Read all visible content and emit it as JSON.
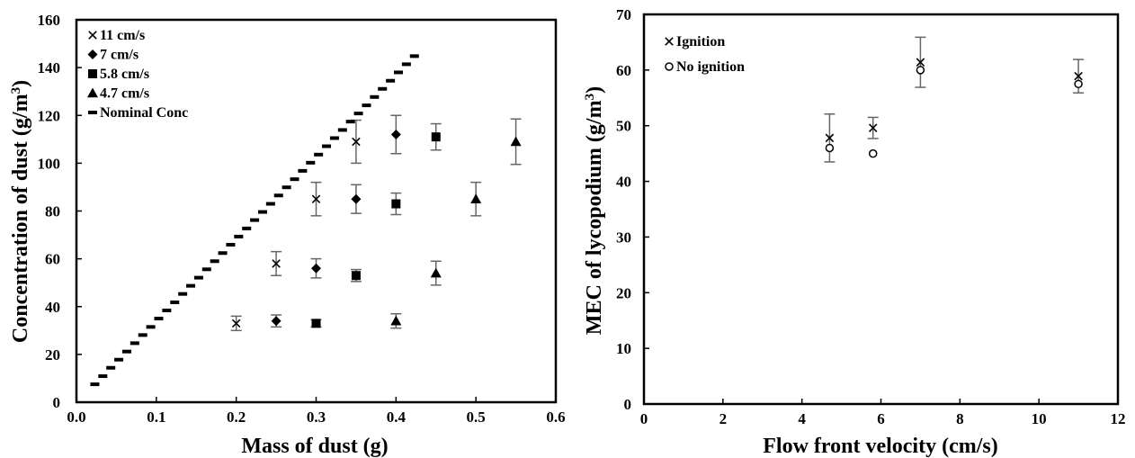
{
  "chart_data": [
    {
      "type": "scatter",
      "xlabel": "Mass of dust (g)",
      "ylabel": "Concentration of dust (g/m",
      "ylabel_sup": "3",
      "ylabel_close": ")",
      "xlim": [
        0.0,
        0.6
      ],
      "ylim": [
        0,
        160
      ],
      "x_ticks": [
        "0.0",
        "0.1",
        "0.2",
        "0.3",
        "0.4",
        "0.5",
        "0.6"
      ],
      "x_tick_values": [
        0.0,
        0.1,
        0.2,
        0.3,
        0.4,
        0.5,
        0.6
      ],
      "y_ticks": [
        "0",
        "20",
        "40",
        "60",
        "80",
        "100",
        "120",
        "140",
        "160"
      ],
      "y_tick_values": [
        0,
        20,
        40,
        60,
        80,
        100,
        120,
        140,
        160
      ],
      "grid": false,
      "legend_position": "top-left",
      "series": [
        {
          "name": "11 cm/s",
          "marker": "x",
          "x": [
            0.2,
            0.25,
            0.3,
            0.35
          ],
          "y": [
            33,
            58,
            85,
            109
          ],
          "err": [
            3,
            5,
            7,
            9
          ]
        },
        {
          "name": "7 cm/s",
          "marker": "diamond",
          "x": [
            0.25,
            0.3,
            0.35,
            0.4
          ],
          "y": [
            34,
            56,
            85,
            112
          ],
          "err": [
            2.5,
            4,
            6,
            8
          ]
        },
        {
          "name": "5.8 cm/s",
          "marker": "square",
          "x": [
            0.3,
            0.35,
            0.4,
            0.45
          ],
          "y": [
            33,
            53,
            83,
            111
          ],
          "err": [
            1.5,
            2.5,
            4.5,
            5.5
          ]
        },
        {
          "name": "4.7 cm/s",
          "marker": "triangle",
          "x": [
            0.4,
            0.45,
            0.5,
            0.55
          ],
          "y": [
            34,
            54,
            85,
            109
          ],
          "err": [
            3,
            5,
            7,
            9.5
          ]
        },
        {
          "name": "Nominal Conc",
          "marker": "dash",
          "x": [
            0.023,
            0.033,
            0.043,
            0.053,
            0.063,
            0.073,
            0.083,
            0.093,
            0.103,
            0.113,
            0.123,
            0.133,
            0.143,
            0.153,
            0.163,
            0.173,
            0.183,
            0.193,
            0.203,
            0.213,
            0.223,
            0.233,
            0.243,
            0.253,
            0.263,
            0.273,
            0.283,
            0.293,
            0.303,
            0.313,
            0.323,
            0.333,
            0.343,
            0.353,
            0.363,
            0.373,
            0.383,
            0.393,
            0.403,
            0.413,
            0.423
          ],
          "y": [
            7.5,
            10.9,
            14.4,
            17.8,
            21.2,
            24.7,
            28.1,
            31.5,
            35.0,
            38.4,
            41.8,
            45.3,
            48.7,
            52.1,
            55.6,
            59.0,
            62.4,
            65.9,
            69.3,
            72.7,
            76.2,
            79.6,
            83.0,
            86.5,
            89.9,
            93.3,
            96.8,
            100.2,
            103.6,
            107.1,
            110.5,
            113.9,
            117.4,
            120.8,
            124.2,
            127.7,
            131.1,
            134.5,
            138.0,
            141.4,
            144.8
          ]
        }
      ]
    },
    {
      "type": "scatter",
      "xlabel": "Flow front velocity (cm/s)",
      "ylabel": "MEC of lycopodium (g/m",
      "ylabel_sup": "3",
      "ylabel_close": ")",
      "xlim": [
        0,
        12
      ],
      "ylim": [
        0,
        70
      ],
      "x_ticks": [
        "0",
        "2",
        "4",
        "6",
        "8",
        "10",
        "12"
      ],
      "x_tick_values": [
        0,
        2,
        4,
        6,
        8,
        10,
        12
      ],
      "y_ticks": [
        "0",
        "10",
        "20",
        "30",
        "40",
        "50",
        "60",
        "70"
      ],
      "y_tick_values": [
        0,
        10,
        20,
        30,
        40,
        50,
        60,
        70
      ],
      "grid": false,
      "legend_position": "top-left",
      "series": [
        {
          "name": "Ignition",
          "marker": "x",
          "x": [
            4.7,
            5.8,
            7.0,
            11.0
          ],
          "y": [
            47.8,
            49.6,
            61.4,
            58.9
          ],
          "err": [
            4.3,
            1.9,
            4.5,
            3.0
          ]
        },
        {
          "name": "No ignition",
          "marker": "circle",
          "x": [
            4.7,
            5.8,
            7.0,
            11.0
          ],
          "y": [
            46.0,
            45.0,
            60.0,
            57.5
          ],
          "err": [
            null,
            null,
            null,
            null
          ]
        }
      ]
    }
  ]
}
